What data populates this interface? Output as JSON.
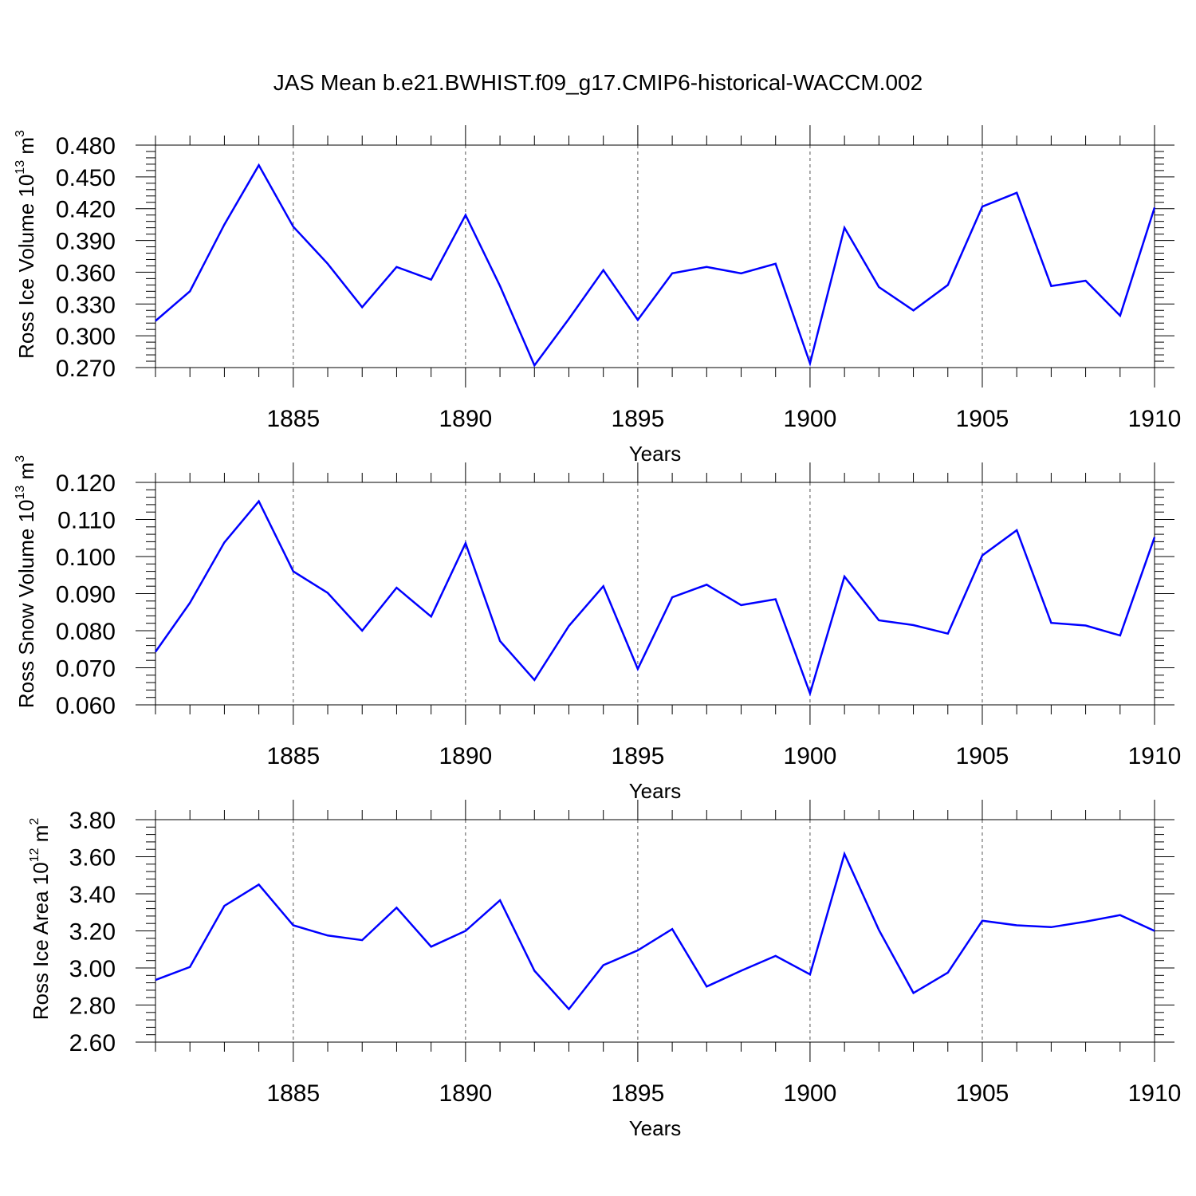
{
  "title": "JAS Mean b.e21.BWHIST.f09_g17.CMIP6-historical-WACCM.002",
  "colors": {
    "line": "#0000ff",
    "axis": "#000000",
    "grid": "#555555"
  },
  "chart_data": [
    {
      "type": "line",
      "title": "JAS Mean b.e21.BWHIST.f09_g17.CMIP6-historical-WACCM.002",
      "xlabel": "Years",
      "ylabel": "Ross Ice Volume 10",
      "ylabel_exp": "13",
      "ylabel_unit": " m",
      "ylabel_unit_exp": "3",
      "xlim": [
        1881,
        1910
      ],
      "ylim": [
        0.27,
        0.48
      ],
      "xticks": [
        1885,
        1890,
        1895,
        1900,
        1905,
        1910
      ],
      "xtick_labels": [
        "1885",
        "1890",
        "1895",
        "1900",
        "1905",
        "1910"
      ],
      "yticks": [
        0.27,
        0.3,
        0.33,
        0.36,
        0.39,
        0.42,
        0.45,
        0.48
      ],
      "ytick_labels": [
        "0.270",
        "0.300",
        "0.330",
        "0.360",
        "0.390",
        "0.420",
        "0.450",
        "0.480"
      ],
      "grid": "vertical dashed at major x ticks",
      "x": [
        1881,
        1882,
        1883,
        1884,
        1885,
        1886,
        1887,
        1888,
        1889,
        1890,
        1891,
        1892,
        1893,
        1894,
        1895,
        1896,
        1897,
        1898,
        1899,
        1900,
        1901,
        1902,
        1903,
        1904,
        1905,
        1906,
        1907,
        1908,
        1909,
        1910
      ],
      "series": [
        {
          "values": [
            0.314,
            0.342,
            0.405,
            0.461,
            0.403,
            0.368,
            0.327,
            0.365,
            0.353,
            0.414,
            0.347,
            0.272,
            0.316,
            0.362,
            0.315,
            0.359,
            0.365,
            0.359,
            0.368,
            0.274,
            0.402,
            0.346,
            0.324,
            0.348,
            0.422,
            0.435,
            0.347,
            0.352,
            0.319,
            0.421
          ]
        }
      ]
    },
    {
      "type": "line",
      "xlabel": "Years",
      "ylabel": "Ross Snow Volume 10",
      "ylabel_exp": "13",
      "ylabel_unit": " m",
      "ylabel_unit_exp": "3",
      "xlim": [
        1881,
        1910
      ],
      "ylim": [
        0.06,
        0.12
      ],
      "xticks": [
        1885,
        1890,
        1895,
        1900,
        1905,
        1910
      ],
      "xtick_labels": [
        "1885",
        "1890",
        "1895",
        "1900",
        "1905",
        "1910"
      ],
      "yticks": [
        0.06,
        0.07,
        0.08,
        0.09,
        0.1,
        0.11,
        0.12
      ],
      "ytick_labels": [
        "0.060",
        "0.070",
        "0.080",
        "0.090",
        "0.100",
        "0.110",
        "0.120"
      ],
      "grid": "vertical dashed at major x ticks",
      "x": [
        1881,
        1882,
        1883,
        1884,
        1885,
        1886,
        1887,
        1888,
        1889,
        1890,
        1891,
        1892,
        1893,
        1894,
        1895,
        1896,
        1897,
        1898,
        1899,
        1900,
        1901,
        1902,
        1903,
        1904,
        1905,
        1906,
        1907,
        1908,
        1909,
        1910
      ],
      "series": [
        {
          "values": [
            0.0743,
            0.0875,
            0.1038,
            0.1149,
            0.096,
            0.0902,
            0.08,
            0.0916,
            0.0838,
            0.1036,
            0.0772,
            0.0667,
            0.0813,
            0.092,
            0.0697,
            0.089,
            0.0924,
            0.0869,
            0.0885,
            0.0631,
            0.0946,
            0.0828,
            0.0815,
            0.0792,
            0.1003,
            0.1071,
            0.0821,
            0.0814,
            0.0787,
            0.1052
          ]
        }
      ]
    },
    {
      "type": "line",
      "xlabel": "Years",
      "ylabel": "Ross Ice Area 10",
      "ylabel_exp": "12",
      "ylabel_unit": " m",
      "ylabel_unit_exp": "2",
      "xlim": [
        1881,
        1910
      ],
      "ylim": [
        2.6,
        3.8
      ],
      "xticks": [
        1885,
        1890,
        1895,
        1900,
        1905,
        1910
      ],
      "xtick_labels": [
        "1885",
        "1890",
        "1895",
        "1900",
        "1905",
        "1910"
      ],
      "yticks": [
        2.6,
        2.8,
        3.0,
        3.2,
        3.4,
        3.6,
        3.8
      ],
      "ytick_labels": [
        "2.60",
        "2.80",
        "3.00",
        "3.20",
        "3.40",
        "3.60",
        "3.80"
      ],
      "grid": "vertical dashed at major x ticks",
      "x": [
        1881,
        1882,
        1883,
        1884,
        1885,
        1886,
        1887,
        1888,
        1889,
        1890,
        1891,
        1892,
        1893,
        1894,
        1895,
        1896,
        1897,
        1898,
        1899,
        1900,
        1901,
        1902,
        1903,
        1904,
        1905,
        1906,
        1907,
        1908,
        1909,
        1910
      ],
      "series": [
        {
          "values": [
            2.935,
            3.005,
            3.335,
            3.45,
            3.23,
            3.175,
            3.15,
            3.325,
            3.115,
            3.2,
            3.365,
            2.985,
            2.778,
            3.015,
            3.095,
            3.21,
            2.9,
            2.985,
            3.065,
            2.965,
            3.615,
            3.205,
            2.865,
            2.975,
            3.255,
            3.23,
            3.22,
            3.25,
            3.285,
            3.2
          ]
        }
      ]
    }
  ]
}
